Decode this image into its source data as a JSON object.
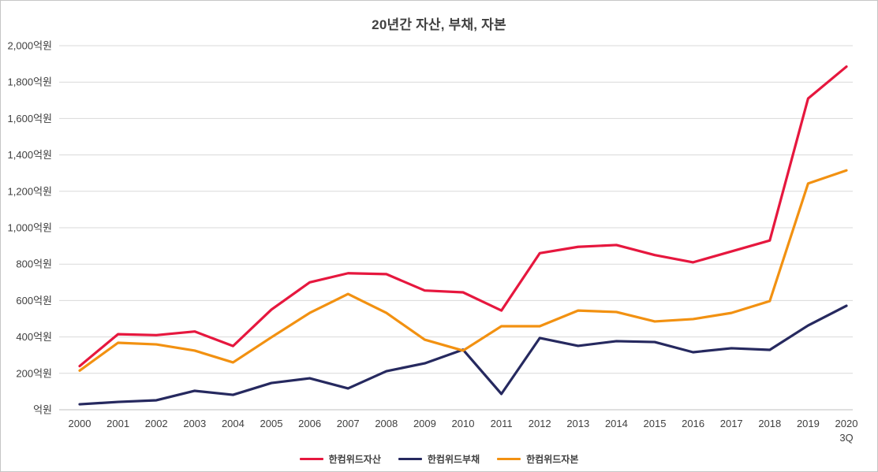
{
  "chart_data": {
    "type": "line",
    "title": "20년간 자산, 부채, 자본",
    "xlabel": "",
    "ylabel": "",
    "ylim": [
      0,
      2000
    ],
    "grid": true,
    "legend_position": "bottom",
    "categories": [
      "2000",
      "2001",
      "2002",
      "2003",
      "2004",
      "2005",
      "2006",
      "2007",
      "2008",
      "2009",
      "2010",
      "2011",
      "2012",
      "2013",
      "2014",
      "2015",
      "2016",
      "2017",
      "2018",
      "2019",
      "2020 3Q"
    ],
    "y_ticks": [
      {
        "value": 0,
        "label": "억원"
      },
      {
        "value": 200,
        "label": "200억원"
      },
      {
        "value": 400,
        "label": "400억원"
      },
      {
        "value": 600,
        "label": "600억원"
      },
      {
        "value": 800,
        "label": "800억원"
      },
      {
        "value": 1000,
        "label": "1,000억원"
      },
      {
        "value": 1200,
        "label": "1,200억원"
      },
      {
        "value": 1400,
        "label": "1,400억원"
      },
      {
        "value": 1600,
        "label": "1,600억원"
      },
      {
        "value": 1800,
        "label": "1,800억원"
      },
      {
        "value": 2000,
        "label": "2,000억원"
      }
    ],
    "series": [
      {
        "name": "한컴위드자산",
        "color": "#e6173e",
        "values": [
          240,
          415,
          410,
          430,
          350,
          550,
          700,
          750,
          745,
          655,
          645,
          545,
          860,
          895,
          905,
          850,
          810,
          870,
          930,
          1710,
          1885
        ]
      },
      {
        "name": "한컴위드부채",
        "color": "#26295f",
        "values": [
          30,
          43,
          52,
          104,
          82,
          147,
          173,
          117,
          212,
          255,
          330,
          87,
          394,
          351,
          377,
          372,
          316,
          338,
          329,
          463,
          571
        ]
      },
      {
        "name": "한컴위드자본",
        "color": "#f29111",
        "values": [
          215,
          368,
          359,
          325,
          260,
          398,
          532,
          636,
          532,
          385,
          325,
          459,
          459,
          545,
          537,
          485,
          498,
          532,
          597,
          1243,
          1315
        ]
      }
    ]
  }
}
